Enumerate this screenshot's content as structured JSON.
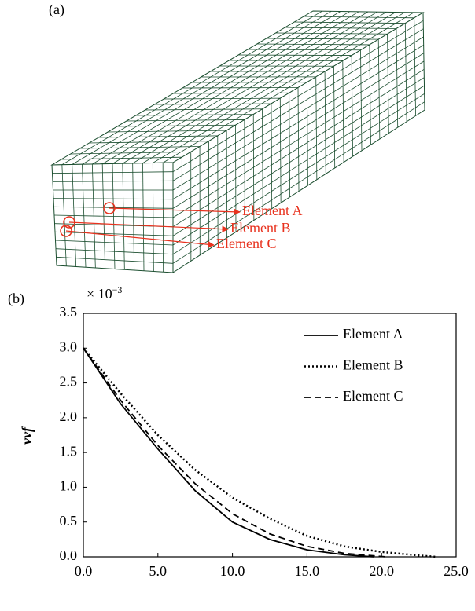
{
  "panel_a": {
    "label": "(a)",
    "annotations": [
      "Element A",
      "Element B",
      "Element C"
    ],
    "mesh_color": "#1a4d2e",
    "marker_color": "#e8321e"
  },
  "chart_data": {
    "type": "line",
    "panel_label": "(b)",
    "y_scale": {
      "base": "× 10",
      "exponent": "−3"
    },
    "ylabel": "vvf",
    "xlim": [
      0,
      25
    ],
    "ylim": [
      0,
      3.5
    ],
    "xticks": [
      {
        "value": 0,
        "label": "0.0"
      },
      {
        "value": 5,
        "label": "5.0"
      },
      {
        "value": 10,
        "label": "10.0"
      },
      {
        "value": 15,
        "label": "15.0"
      },
      {
        "value": 20,
        "label": "20.0"
      },
      {
        "value": 25,
        "label": "25.0"
      }
    ],
    "yticks": [
      {
        "value": 0,
        "label": "0.0"
      },
      {
        "value": 0.5,
        "label": "0.5"
      },
      {
        "value": 1,
        "label": "1.0"
      },
      {
        "value": 1.5,
        "label": "1.5"
      },
      {
        "value": 2,
        "label": "2.0"
      },
      {
        "value": 2.5,
        "label": "2.5"
      },
      {
        "value": 3,
        "label": "3.0"
      },
      {
        "value": 3.5,
        "label": "3.5"
      }
    ],
    "legend": "upper right",
    "series": [
      {
        "name": "Element A",
        "color": "#000000",
        "dash": "solid",
        "x": [
          0,
          2.5,
          5,
          7.5,
          10,
          12.5,
          15,
          17.5,
          19.5
        ],
        "values": [
          3.0,
          2.2,
          1.55,
          0.95,
          0.5,
          0.25,
          0.1,
          0.03,
          0
        ]
      },
      {
        "name": "Element B",
        "color": "#000000",
        "dash": "dotted",
        "x": [
          0,
          2.5,
          5,
          7.5,
          10,
          12.5,
          15,
          17.5,
          20,
          22.5,
          23.7
        ],
        "values": [
          3.0,
          2.35,
          1.75,
          1.25,
          0.85,
          0.55,
          0.3,
          0.15,
          0.07,
          0.02,
          0
        ]
      },
      {
        "name": "Element C",
        "color": "#000000",
        "dash": "dashed",
        "x": [
          0,
          2.5,
          5,
          7.5,
          10,
          12.5,
          15,
          17.5,
          20.3
        ],
        "values": [
          3.0,
          2.25,
          1.6,
          1.05,
          0.62,
          0.33,
          0.15,
          0.05,
          0
        ]
      }
    ]
  }
}
